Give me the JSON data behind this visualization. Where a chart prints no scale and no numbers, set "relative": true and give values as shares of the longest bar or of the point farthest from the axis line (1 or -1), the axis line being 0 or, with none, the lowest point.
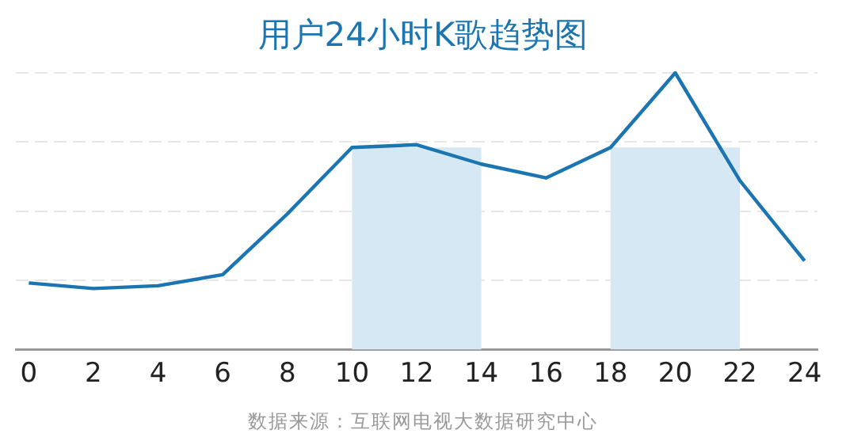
{
  "chart_data": {
    "type": "line",
    "title": "用户24小时K歌趋势图",
    "relative": true,
    "x": [
      0,
      2,
      4,
      6,
      8,
      10,
      12,
      14,
      16,
      18,
      20,
      22,
      24
    ],
    "series": [
      {
        "color": "#1a75b0",
        "values": [
          0.24,
          0.22,
          0.23,
          0.27,
          0.49,
          0.73,
          0.74,
          0.67,
          0.62,
          0.73,
          1,
          0.61,
          0.32
        ]
      }
    ],
    "xlim": [
      -0.4,
      24.4
    ],
    "xticks": [
      0,
      2,
      4,
      6,
      8,
      10,
      12,
      14,
      16,
      18,
      20,
      22,
      24
    ],
    "bands": [
      {
        "axis": "x",
        "from": 10,
        "to": 14,
        "color": "#d6e8f4"
      },
      {
        "axis": "x",
        "from": 18,
        "to": 22,
        "color": "#d6e8f4"
      }
    ],
    "grid": "y",
    "legend": false,
    "marker": "none",
    "line_style": "solid",
    "annotations": [
      "数据来源：互联网电视大数据研究中心"
    ]
  }
}
